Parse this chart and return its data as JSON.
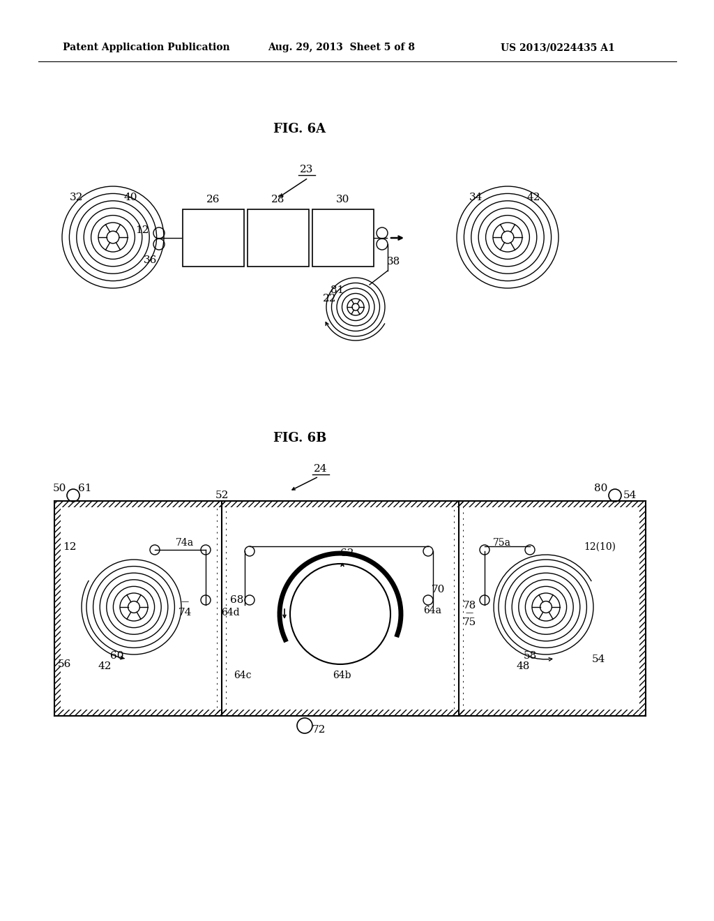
{
  "bg_color": "#ffffff",
  "header_left": "Patent Application Publication",
  "header_center": "Aug. 29, 2013  Sheet 5 of 8",
  "header_right": "US 2013/0224435 A1",
  "fig6a_title": "FIG. 6A",
  "fig6b_title": "FIG. 6B"
}
